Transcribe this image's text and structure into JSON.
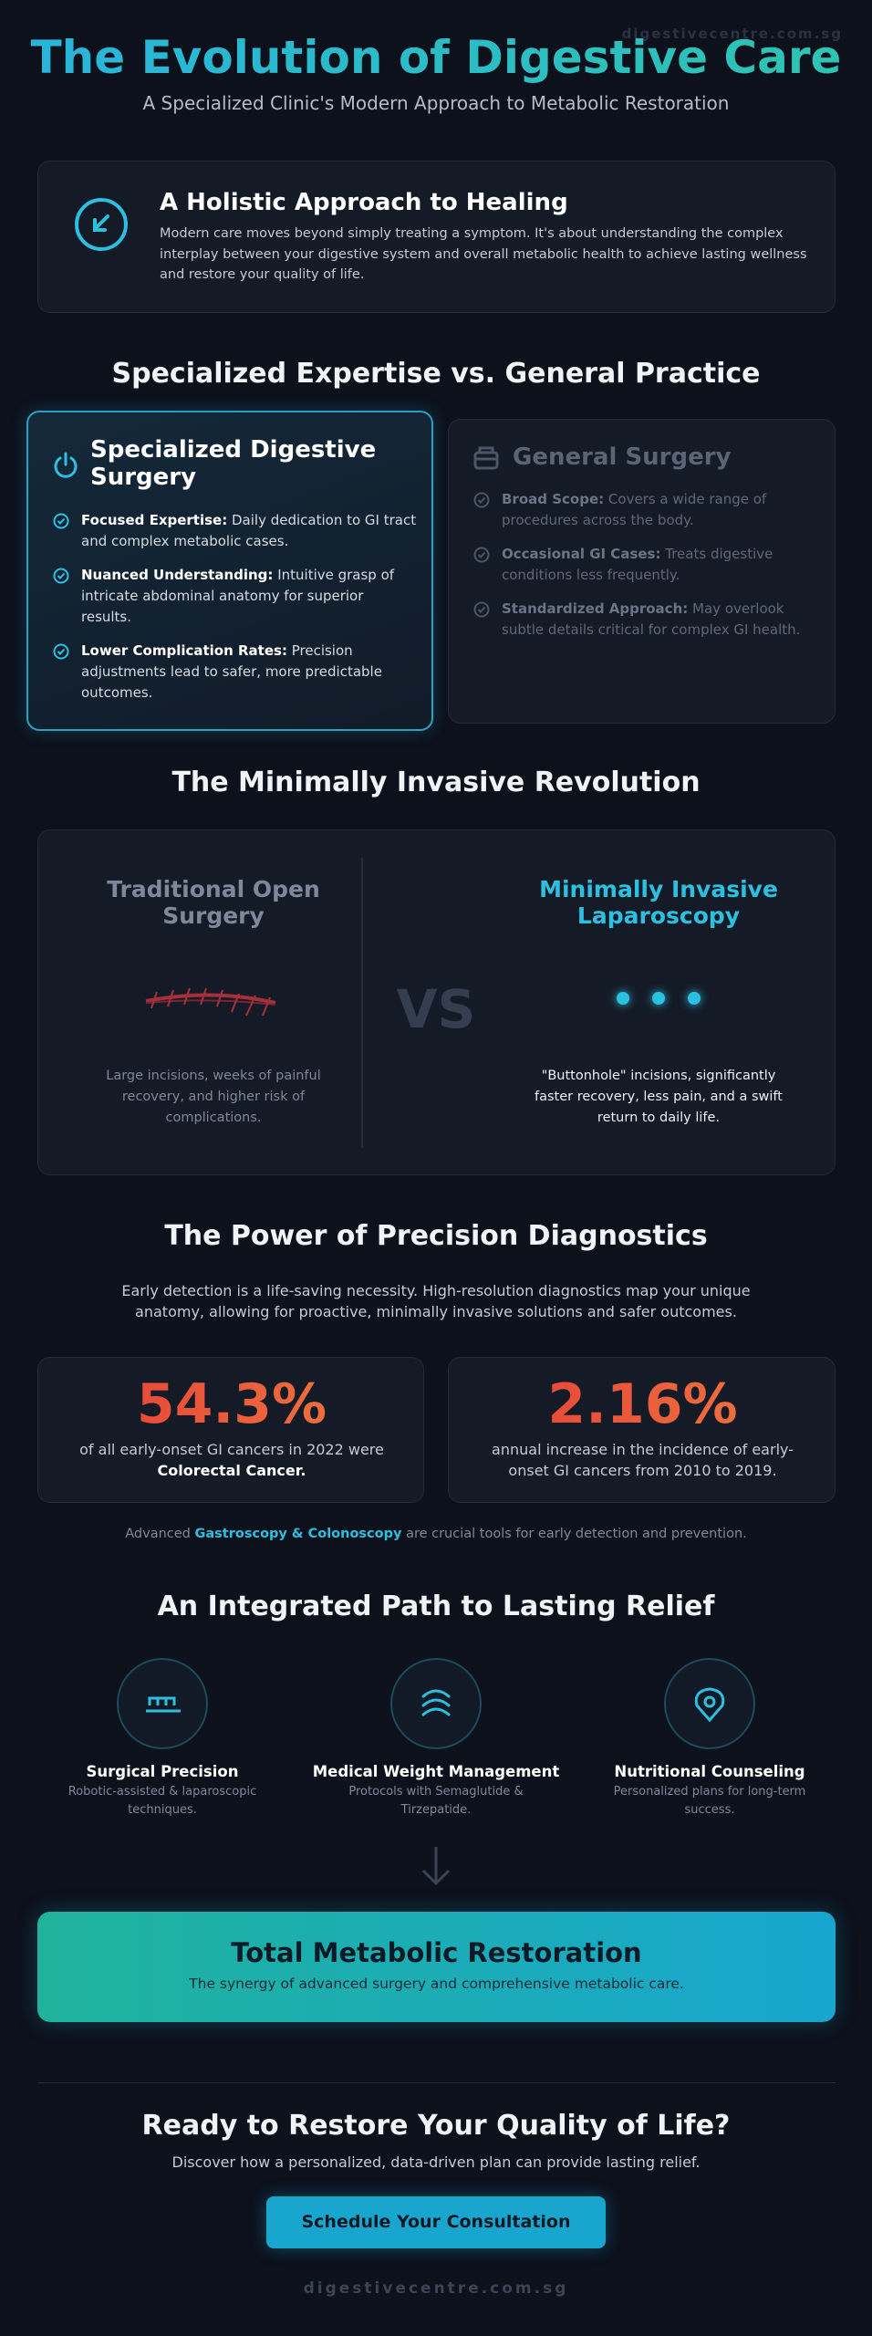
{
  "header": {
    "watermark": "digestivecentre.com.sg",
    "title": "The Evolution of Digestive Care",
    "subtitle": "A Specialized Clinic's Modern Approach to Metabolic Restoration"
  },
  "holistic": {
    "title": "A Holistic Approach to Healing",
    "text": "Modern care moves beyond simply treating a symptom. It's about understanding the complex interplay between your digestive system and overall metabolic health to achieve lasting wellness and restore your quality of life."
  },
  "expertise": {
    "title": "Specialized Expertise vs. General Practice",
    "specialized": {
      "title": "Specialized Digestive Surgery",
      "items": [
        {
          "label": "Focused Expertise:",
          "text": "Daily dedication to GI tract and complex metabolic cases."
        },
        {
          "label": "Nuanced Understanding:",
          "text": "Intuitive grasp of intricate abdominal anatomy for superior results."
        },
        {
          "label": "Lower Complication Rates:",
          "text": "Precision adjustments lead to safer, more predictable outcomes."
        }
      ]
    },
    "general": {
      "title": "General Surgery",
      "items": [
        {
          "label": "Broad Scope:",
          "text": "Covers a wide range of procedures across the body."
        },
        {
          "label": "Occasional GI Cases:",
          "text": "Treats digestive conditions less frequently."
        },
        {
          "label": "Standardized Approach:",
          "text": "May overlook subtle details critical for complex GI health."
        }
      ]
    }
  },
  "invasive": {
    "title": "The Minimally Invasive Revolution",
    "traditional": {
      "title": "Traditional Open Surgery",
      "text": "Large incisions, weeks of painful recovery, and higher risk of complications."
    },
    "vs": "VS",
    "laparoscopy": {
      "title": "Minimally Invasive Laparoscopy",
      "text": "\"Buttonhole\" incisions, significantly faster recovery, less pain, and a swift return to daily life."
    }
  },
  "diagnostics": {
    "title": "The Power of Precision Diagnostics",
    "text": "Early detection is a life-saving necessity. High-resolution diagnostics map your unique anatomy, allowing for proactive, minimally invasive solutions and safer outcomes.",
    "stats": [
      {
        "value": "54.3%",
        "text": "of all early-onset GI cancers in 2022 were",
        "strong": "Colorectal Cancer."
      },
      {
        "value": "2.16%",
        "text": "annual increase in the incidence of early-onset GI cancers from 2010 to 2019."
      }
    ],
    "note": {
      "before": "Advanced",
      "highlight": "Gastroscopy & Colonoscopy",
      "after": "are crucial tools for early detection and prevention."
    }
  },
  "path": {
    "title": "An Integrated Path to Lasting Relief",
    "steps": [
      {
        "title": "Surgical Precision",
        "text": "Robotic-assisted & laparoscopic techniques."
      },
      {
        "title": "Medical Weight Management",
        "text": "Protocols with Semaglutide & Tirzepatide."
      },
      {
        "title": "Nutritional Counseling",
        "text": "Personalized plans for long-term success."
      }
    ],
    "result": {
      "title": "Total Metabolic Restoration",
      "text": "The synergy of advanced surgery and comprehensive metabolic care."
    }
  },
  "cta": {
    "title": "Ready to Restore Your Quality of Life?",
    "text": "Discover how a personalized, data-driven plan can provide lasting relief.",
    "button": "Schedule Your Consultation"
  },
  "footer": "digestivecentre.com.sg"
}
